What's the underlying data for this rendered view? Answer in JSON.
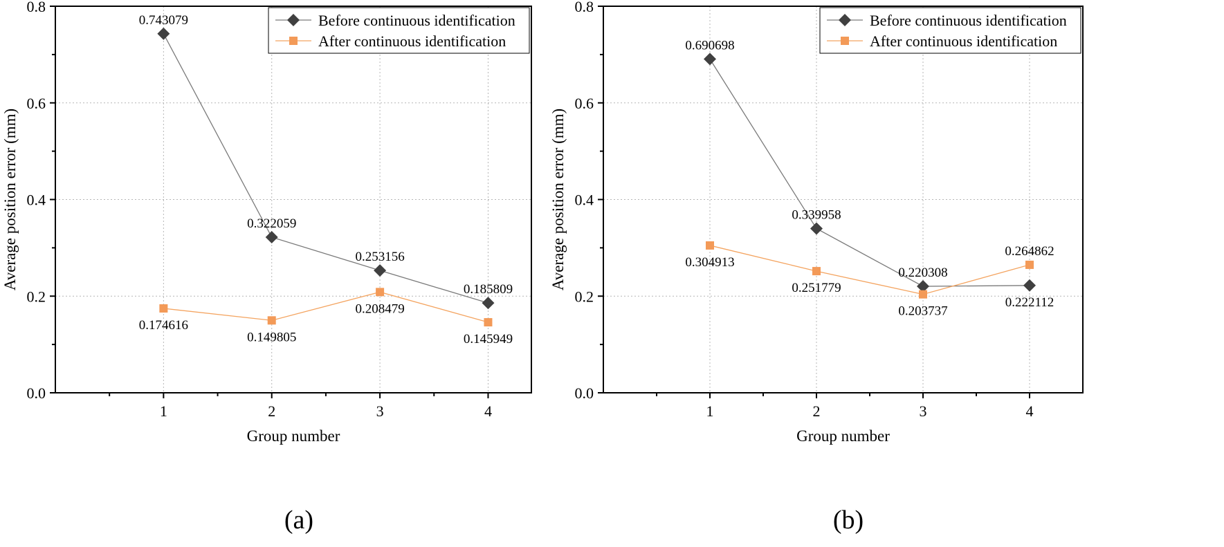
{
  "colors": {
    "before": "#404040",
    "before_line": "#7a7a7a",
    "after": "#f4a460",
    "after_fill": "#f39a58",
    "grid": "#b5b5b5",
    "axis": "#000000"
  },
  "chart_data": [
    {
      "type": "line",
      "panel_label": "(a)",
      "title": "",
      "xlabel": "Group number",
      "ylabel": "Average position error (mm)",
      "categories": [
        "1",
        "2",
        "3",
        "4"
      ],
      "x": [
        1,
        2,
        3,
        4
      ],
      "xlim": [
        0.0,
        4.4
      ],
      "ylim": [
        0.0,
        0.8
      ],
      "yticks": [
        0.0,
        0.2,
        0.4,
        0.6,
        0.8
      ],
      "ytick_labels": [
        "0.0",
        "0.2",
        "0.4",
        "0.6",
        "0.8"
      ],
      "grid": true,
      "legend_position": "top-right",
      "series": [
        {
          "name": "Before continuous identification",
          "marker": "diamond",
          "values": [
            0.743079,
            0.322059,
            0.253156,
            0.185809
          ],
          "labels": [
            "0.743079",
            "0.322059",
            "0.253156",
            "0.185809"
          ],
          "label_side": [
            "above",
            "above",
            "above",
            "above"
          ]
        },
        {
          "name": "After continuous identification",
          "marker": "square",
          "values": [
            0.174616,
            0.149805,
            0.208479,
            0.145949
          ],
          "labels": [
            "0.174616",
            "0.149805",
            "0.208479",
            "0.145949"
          ],
          "label_side": [
            "below",
            "below",
            "below",
            "below"
          ]
        }
      ]
    },
    {
      "type": "line",
      "panel_label": "(b)",
      "title": "",
      "xlabel": "Group number",
      "ylabel": "Average position error (mm)",
      "categories": [
        "1",
        "2",
        "3",
        "4"
      ],
      "x": [
        1,
        2,
        3,
        4
      ],
      "xlim": [
        0.0,
        4.5
      ],
      "ylim": [
        0.0,
        0.8
      ],
      "yticks": [
        0.0,
        0.2,
        0.4,
        0.6,
        0.8
      ],
      "ytick_labels": [
        "0.0",
        "0.2",
        "0.4",
        "0.6",
        "0.8"
      ],
      "grid": true,
      "legend_position": "top-right",
      "series": [
        {
          "name": "Before continuous identification",
          "marker": "diamond",
          "values": [
            0.690698,
            0.339958,
            0.220308,
            0.222112
          ],
          "labels": [
            "0.690698",
            "0.339958",
            "0.220308",
            "0.222112"
          ],
          "label_side": [
            "above",
            "above",
            "above",
            "below"
          ]
        },
        {
          "name": "After continuous identification",
          "marker": "square",
          "values": [
            0.304913,
            0.251779,
            0.203737,
            0.264862
          ],
          "labels": [
            "0.304913",
            "0.251779",
            "0.203737",
            "0.264862"
          ],
          "label_side": [
            "below",
            "below",
            "below",
            "above"
          ]
        }
      ]
    }
  ]
}
